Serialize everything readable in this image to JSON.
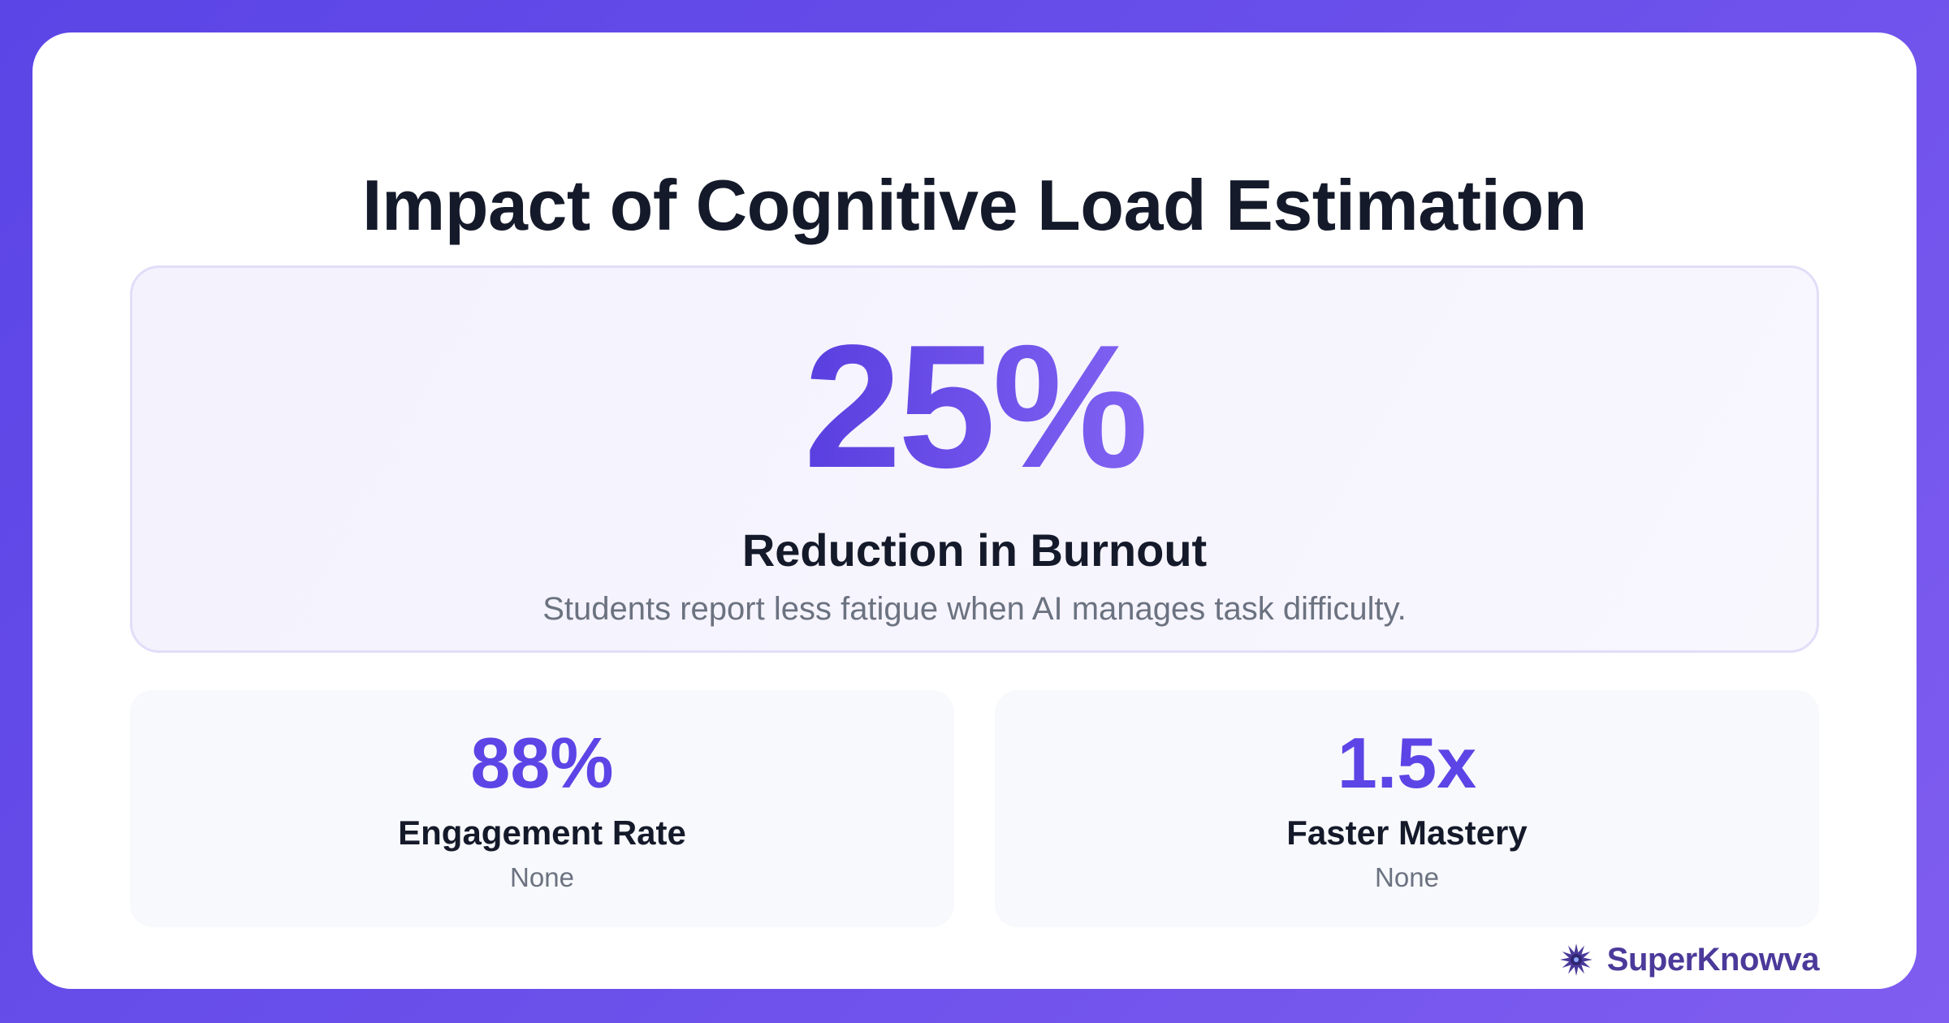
{
  "title": "Impact of Cognitive Load Estimation",
  "hero": {
    "value": "25%",
    "label": "Reduction in Burnout",
    "description": "Students report less fatigue when AI manages task difficulty."
  },
  "stats": [
    {
      "value": "88%",
      "label": "Engagement Rate",
      "description": "None"
    },
    {
      "value": "1.5x",
      "label": "Faster Mastery",
      "description": "None"
    }
  ],
  "brand": {
    "name": "SuperKnowva",
    "icon": "starburst-logo-icon"
  },
  "colors": {
    "accent": "#5b45e6",
    "heading": "#141a2a",
    "muted": "#6b7280",
    "background_gradient_start": "#5b45e6",
    "background_gradient_end": "#7f5df0"
  }
}
